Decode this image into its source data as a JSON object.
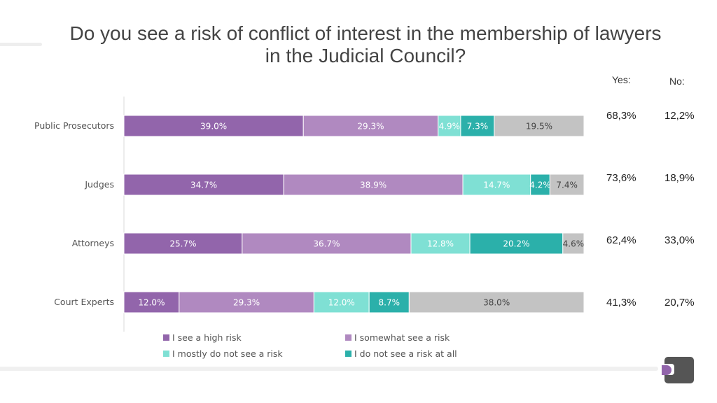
{
  "title": "Do you see a risk of conflict of interest in the membership of lawyers in the Judicial Council?",
  "title_line1": "Do you see a risk of conflict of interest in the membership of lawyers",
  "title_line2": "in the Judicial Council?",
  "columns": {
    "yes_label": "Yes:",
    "no_label": "No:"
  },
  "chart_data": {
    "type": "bar",
    "orientation": "horizontal",
    "stacked": true,
    "normalized_percent": true,
    "categories": [
      "Public Prosecutors",
      "Judges",
      "Attorneys",
      "Court Experts"
    ],
    "series": [
      {
        "name": "I see a high risk",
        "color": "#9265ab",
        "values": [
          39.0,
          34.7,
          25.7,
          12.0
        ],
        "labels": [
          "39.0%",
          "34.7%",
          "25.7%",
          "12.0%"
        ]
      },
      {
        "name": "I somewhat see a risk",
        "color": "#b089c0",
        "values": [
          29.3,
          38.9,
          36.7,
          29.3
        ],
        "labels": [
          "29.3%",
          "38.9%",
          "36.7%",
          "29.3%"
        ]
      },
      {
        "name": "I mostly do not see a risk",
        "color": "#7fe0d4",
        "values": [
          4.9,
          14.7,
          12.8,
          12.0
        ],
        "labels": [
          "4.9%",
          "14.7%",
          "12.8%",
          "12.0%"
        ]
      },
      {
        "name": "I do not see a risk at all",
        "color": "#2bb0aa",
        "values": [
          7.3,
          4.2,
          20.2,
          8.7
        ],
        "labels": [
          "7.3%",
          "4.2%",
          "20.2%",
          "8.7%"
        ]
      },
      {
        "color": "#c3c3c3",
        "values": [
          19.5,
          7.4,
          4.6,
          38.0
        ],
        "labels": [
          "19.5%",
          "7.4%",
          "4.6%",
          "38.0%"
        ]
      }
    ],
    "legend": [
      "I see a high risk",
      "I somewhat see a risk",
      "I mostly do not see a risk",
      "I do not see a risk at all"
    ],
    "legend_position": "bottom",
    "yes_values": [
      "68,3%",
      "73,6%",
      "62,4%",
      "41,3%"
    ],
    "no_values": [
      "12,2%",
      "18,9%",
      "33,0%",
      "20,7%"
    ]
  }
}
